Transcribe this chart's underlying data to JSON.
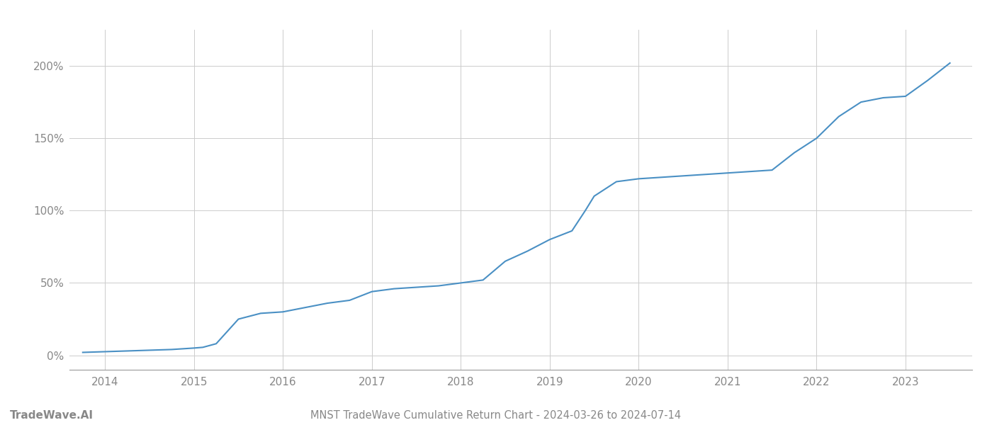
{
  "title": "MNST TradeWave Cumulative Return Chart - 2024-03-26 to 2024-07-14",
  "watermark": "TradeWave.AI",
  "line_color": "#4a90c4",
  "background_color": "#ffffff",
  "grid_color": "#cccccc",
  "x_years": [
    2014,
    2015,
    2016,
    2017,
    2018,
    2019,
    2020,
    2021,
    2022,
    2023
  ],
  "x_data": [
    2013.75,
    2014.0,
    2014.25,
    2014.5,
    2014.75,
    2015.0,
    2015.1,
    2015.25,
    2015.5,
    2015.75,
    2016.0,
    2016.25,
    2016.5,
    2016.75,
    2017.0,
    2017.25,
    2017.5,
    2017.75,
    2018.0,
    2018.25,
    2018.5,
    2018.75,
    2019.0,
    2019.25,
    2019.4,
    2019.5,
    2019.75,
    2020.0,
    2020.25,
    2020.5,
    2020.75,
    2021.0,
    2021.25,
    2021.5,
    2021.75,
    2022.0,
    2022.25,
    2022.5,
    2022.75,
    2023.0,
    2023.25,
    2023.5
  ],
  "y_data": [
    2.0,
    2.5,
    3.0,
    3.5,
    4.0,
    5.0,
    5.5,
    8.0,
    25.0,
    29.0,
    30.0,
    33.0,
    36.0,
    38.0,
    44.0,
    46.0,
    47.0,
    48.0,
    50.0,
    52.0,
    65.0,
    72.0,
    80.0,
    86.0,
    100.0,
    110.0,
    120.0,
    122.0,
    123.0,
    124.0,
    125.0,
    126.0,
    127.0,
    128.0,
    140.0,
    150.0,
    165.0,
    175.0,
    178.0,
    179.0,
    190.0,
    202.0
  ],
  "ylim": [
    -10,
    225
  ],
  "xlim": [
    2013.6,
    2023.75
  ],
  "yticks": [
    0,
    50,
    100,
    150,
    200
  ],
  "title_fontsize": 10.5,
  "watermark_fontsize": 11,
  "tick_fontsize": 11,
  "tick_color": "#888888",
  "spine_color": "#999999"
}
